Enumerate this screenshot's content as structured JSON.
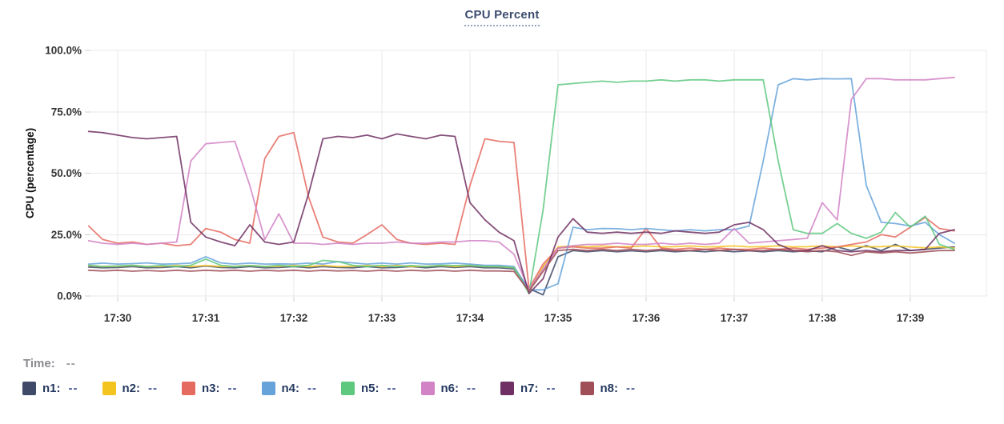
{
  "title": "CPU Percent",
  "time_row": {
    "label": "Time:",
    "value": "--"
  },
  "legend": [
    {
      "name": "n1",
      "label": "n1:",
      "value": "--",
      "color": "#3e4a68"
    },
    {
      "name": "n2",
      "label": "n2:",
      "value": "--",
      "color": "#f3c320"
    },
    {
      "name": "n3",
      "label": "n3:",
      "value": "--",
      "color": "#e56a5f"
    },
    {
      "name": "n4",
      "label": "n4:",
      "value": "--",
      "color": "#66a3da"
    },
    {
      "name": "n5",
      "label": "n5:",
      "value": "--",
      "color": "#5ec87f"
    },
    {
      "name": "n6",
      "label": "n6:",
      "value": "--",
      "color": "#d183c6"
    },
    {
      "name": "n7",
      "label": "n7:",
      "value": "--",
      "color": "#703063"
    },
    {
      "name": "n8",
      "label": "n8:",
      "value": "--",
      "color": "#a04e57"
    }
  ],
  "chart_data": {
    "type": "line",
    "title": "CPU Percent",
    "xlabel": "",
    "ylabel": "CPU (percentage)",
    "x_tick_labels": [
      "17:30",
      "17:31",
      "17:32",
      "17:33",
      "17:34",
      "17:35",
      "17:36",
      "17:37",
      "17:38",
      "17:39"
    ],
    "y_tick_labels": [
      "0.0%",
      "25.0%",
      "50.0%",
      "75.0%",
      "100.0%"
    ],
    "y_tick_values": [
      0,
      25,
      50,
      75,
      100
    ],
    "ylim": [
      0,
      100
    ],
    "grid": true,
    "legend_position": "bottom",
    "x_unit": "minutes after 17:30",
    "x": [
      -0.33,
      -0.17,
      0,
      0.17,
      0.33,
      0.5,
      0.67,
      0.83,
      1,
      1.17,
      1.33,
      1.5,
      1.67,
      1.83,
      2,
      2.17,
      2.33,
      2.5,
      2.67,
      2.83,
      3,
      3.17,
      3.33,
      3.5,
      3.67,
      3.83,
      4,
      4.17,
      4.33,
      4.5,
      4.67,
      4.83,
      5,
      5.17,
      5.33,
      5.5,
      5.67,
      5.83,
      6,
      6.17,
      6.33,
      6.5,
      6.67,
      6.83,
      7,
      7.17,
      7.33,
      7.5,
      7.67,
      7.83,
      8,
      8.17,
      8.33,
      8.5,
      8.67,
      8.83,
      9,
      9.17,
      9.33,
      9.5
    ],
    "series": [
      {
        "name": "n1",
        "color": "#3e4a68",
        "values": [
          11.8,
          11.5,
          11.6,
          12,
          11.5,
          11.6,
          12,
          11.5,
          12.2,
          11.6,
          11.5,
          12,
          11.5,
          11.6,
          12,
          11.5,
          12,
          11.6,
          11.5,
          12,
          11.5,
          11.6,
          12,
          11.5,
          12,
          11.6,
          12,
          11.5,
          11.5,
          11,
          3,
          0.5,
          16,
          18.5,
          18,
          18.5,
          18,
          18.4,
          18,
          18.5,
          18,
          18.4,
          18,
          18.5,
          18,
          18.4,
          18,
          18.5,
          18,
          18.4,
          18,
          20,
          18.5,
          20.5,
          18.5,
          21,
          18.5,
          19,
          19.5,
          20
        ]
      },
      {
        "name": "n2",
        "color": "#f3c320",
        "values": [
          12.4,
          12,
          12.1,
          12.4,
          12,
          12.1,
          12.4,
          12,
          12.4,
          12,
          12.1,
          12.4,
          12,
          12.1,
          12.4,
          12,
          12.4,
          12,
          12.1,
          12.4,
          12,
          12.4,
          12,
          12.1,
          12.4,
          12,
          12.4,
          12,
          12,
          11.5,
          1.5,
          12,
          20,
          20.4,
          20,
          20.4,
          20,
          20.1,
          20.4,
          20,
          20.1,
          20.4,
          20,
          20.1,
          20.4,
          20,
          20.1,
          20.4,
          20,
          20.1,
          20.4,
          20,
          20.4,
          20,
          20.1,
          20.4,
          20,
          19.6,
          20,
          19.5
        ]
      },
      {
        "name": "n3",
        "color": "#e56a5f",
        "values": [
          28.5,
          23,
          21.5,
          22,
          21,
          21.5,
          20.5,
          21,
          27.5,
          26,
          23,
          21.5,
          56,
          65,
          66.5,
          40,
          24,
          22,
          21.5,
          25,
          29,
          23,
          21.5,
          21,
          21.5,
          21,
          45,
          64,
          63,
          62.5,
          3,
          13,
          19.5,
          20,
          19.5,
          19.5,
          20,
          19.5,
          27.5,
          19.5,
          19,
          19.5,
          19,
          19.5,
          19,
          19,
          19.5,
          19,
          19.5,
          19,
          19.5,
          20,
          21,
          22,
          25,
          24,
          28,
          32,
          27.5,
          26.5
        ]
      },
      {
        "name": "n4",
        "color": "#66a3da",
        "values": [
          13,
          13.4,
          13,
          13.2,
          13.5,
          13,
          13.1,
          13.4,
          16,
          13.5,
          13,
          13.4,
          13,
          13.1,
          13,
          13.4,
          13,
          14,
          13.5,
          13,
          13.4,
          13,
          13.5,
          13,
          13.1,
          13.4,
          13,
          12.5,
          12.5,
          12,
          2.5,
          2.5,
          5,
          28,
          27,
          27.5,
          27.4,
          27,
          27.5,
          27,
          26.5,
          27,
          26.5,
          27,
          27,
          28.5,
          55,
          86,
          88.5,
          88,
          88.5,
          88.4,
          88.5,
          45,
          30,
          29.5,
          28.5,
          30,
          25,
          21.5
        ]
      },
      {
        "name": "n5",
        "color": "#5ec87f",
        "values": [
          12.5,
          12,
          12.2,
          12.5,
          12,
          12.4,
          12,
          12.5,
          15,
          12.5,
          12,
          12.4,
          12,
          12.5,
          12,
          12.5,
          14.5,
          14,
          12.5,
          12,
          12.5,
          12,
          12.4,
          12,
          12.5,
          12.4,
          12.5,
          12,
          12,
          11.5,
          1,
          35,
          86,
          86.5,
          87,
          87.5,
          87,
          87.5,
          87.5,
          88,
          87.5,
          88,
          88,
          87.5,
          88,
          88,
          88,
          55,
          27,
          25.5,
          25.5,
          29.5,
          25.5,
          23.5,
          26,
          34,
          28,
          32.5,
          21,
          19
        ]
      },
      {
        "name": "n6",
        "color": "#d183c6",
        "values": [
          22.5,
          21.5,
          21,
          21.5,
          21,
          21.5,
          22,
          55,
          62,
          62.5,
          63,
          45,
          23,
          33.5,
          21.5,
          21.5,
          21,
          21.5,
          21,
          21.5,
          21.5,
          22,
          21.5,
          21.5,
          22,
          22,
          22.5,
          22.5,
          22,
          17,
          2.5,
          11,
          19.5,
          20.5,
          21,
          21,
          21.5,
          21,
          21,
          21.5,
          21,
          21.5,
          21,
          21.5,
          27.5,
          21.5,
          22,
          22.5,
          23,
          23.5,
          38,
          31,
          80,
          88.5,
          88.5,
          88,
          88,
          88,
          88.5,
          89
        ]
      },
      {
        "name": "n7",
        "color": "#703063",
        "values": [
          67,
          66.5,
          65.5,
          64.5,
          64,
          64.5,
          65,
          30,
          24,
          22,
          20.5,
          29,
          22,
          21,
          22,
          42,
          64,
          65,
          64.5,
          65.5,
          64,
          66,
          65,
          64,
          65.5,
          65,
          38,
          31,
          26,
          22.5,
          1,
          7,
          24,
          31.5,
          26,
          25.5,
          26,
          25.5,
          26,
          25.5,
          26.5,
          26,
          25.5,
          26,
          29,
          30,
          27,
          21,
          18.5,
          18.5,
          20.5,
          18.5,
          18,
          18.5,
          18,
          18.5,
          18.5,
          19,
          25.5,
          27
        ]
      },
      {
        "name": "n8",
        "color": "#a04e57",
        "values": [
          10.5,
          10.2,
          10.5,
          10.1,
          10.4,
          10.1,
          10.5,
          10.1,
          10.5,
          10.2,
          10.5,
          10.1,
          10.5,
          10.2,
          10.5,
          10.1,
          10.5,
          10.2,
          10.4,
          10.1,
          10.5,
          10.1,
          10.5,
          10.2,
          10.5,
          10.1,
          10.5,
          10.2,
          10.2,
          10,
          2,
          10,
          18.5,
          19,
          18.5,
          19,
          18.5,
          19,
          18.5,
          19,
          18.5,
          18.5,
          19,
          18.5,
          19,
          18.5,
          18.5,
          19,
          18.5,
          18,
          18.5,
          18,
          16.5,
          18,
          17.5,
          18,
          17.5,
          18,
          18.5,
          18.5
        ]
      }
    ],
    "style": {
      "grid_color": "#e9e9ec",
      "tick_color": "#cfcfd4",
      "axis_text_color": "#333333",
      "title_color": "#3d4d70"
    }
  }
}
